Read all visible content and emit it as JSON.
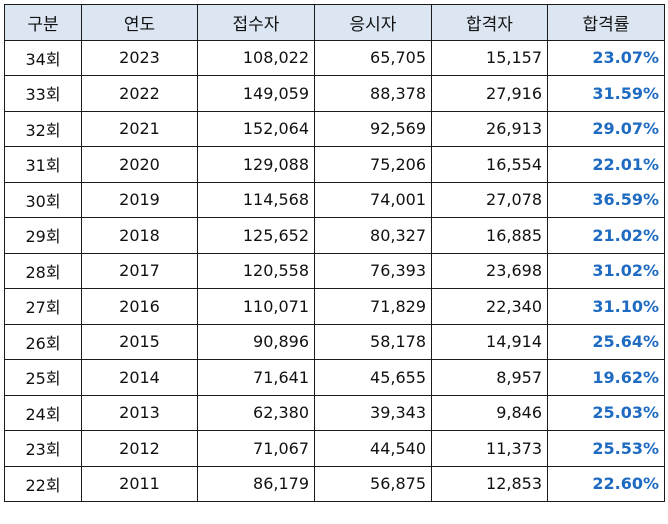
{
  "table": {
    "headers": [
      "구분",
      "연도",
      "접수자",
      "응시자",
      "합격자",
      "합격률"
    ],
    "rate_color": "#1f6bc1",
    "header_bg": "#dce6f2",
    "rows": [
      [
        "34회",
        "2023",
        "108,022",
        "65,705",
        "15,157",
        "23.07%"
      ],
      [
        "33회",
        "2022",
        "149,059",
        "88,378",
        "27,916",
        "31.59%"
      ],
      [
        "32회",
        "2021",
        "152,064",
        "92,569",
        "26,913",
        "29.07%"
      ],
      [
        "31회",
        "2020",
        "129,088",
        "75,206",
        "16,554",
        "22.01%"
      ],
      [
        "30회",
        "2019",
        "114,568",
        "74,001",
        "27,078",
        "36.59%"
      ],
      [
        "29회",
        "2018",
        "125,652",
        "80,327",
        "16,885",
        "21.02%"
      ],
      [
        "28회",
        "2017",
        "120,558",
        "76,393",
        "23,698",
        "31.02%"
      ],
      [
        "27회",
        "2016",
        "110,071",
        "71,829",
        "22,340",
        "31.10%"
      ],
      [
        "26회",
        "2015",
        "90,896",
        "58,178",
        "14,914",
        "25.64%"
      ],
      [
        "25회",
        "2014",
        "71,641",
        "45,655",
        "8,957",
        "19.62%"
      ],
      [
        "24회",
        "2013",
        "62,380",
        "39,343",
        "9,846",
        "25.03%"
      ],
      [
        "23회",
        "2012",
        "71,067",
        "44,540",
        "11,373",
        "25.53%"
      ],
      [
        "22회",
        "2011",
        "86,179",
        "56,875",
        "12,853",
        "22.60%"
      ]
    ]
  }
}
